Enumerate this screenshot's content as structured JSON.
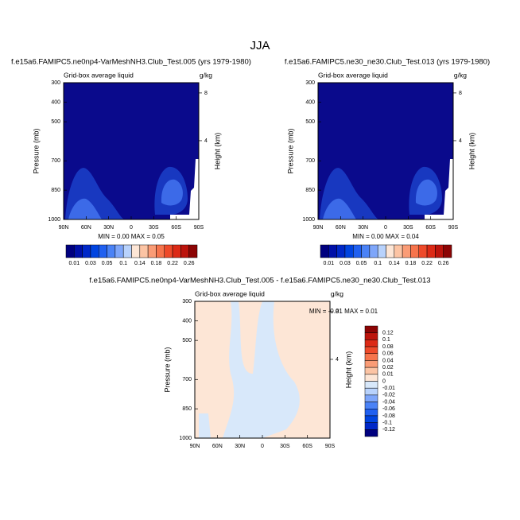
{
  "title": "JJA",
  "chart_data": [
    {
      "type": "contour",
      "title": "f.e15a6.FAMIPC5.ne0np4-VarMeshNH3.Club_Test.005 (yrs 1979-1980)",
      "subtitle": "Grid-box average liquid",
      "units": "g/kg",
      "ylabel": "Pressure (mb)",
      "y2label": "Height (km)",
      "stats": "MIN =  0.00  MAX =  0.05",
      "xlim": [
        90,
        -90
      ],
      "xticks": [
        {
          "value": 90,
          "label": "90N"
        },
        {
          "value": 60,
          "label": "60N"
        },
        {
          "value": 30,
          "label": "30N"
        },
        0,
        {
          "value": -30,
          "label": "30S"
        },
        {
          "value": -60,
          "label": "60S"
        },
        {
          "value": -90,
          "label": "90S"
        }
      ],
      "ylim": [
        300,
        1000
      ],
      "yticks": [
        300,
        400,
        500,
        700,
        850,
        1000
      ],
      "y2lim": [
        8.86,
        -2.6
      ],
      "y2ticks": [
        8,
        4
      ],
      "colorbar": {
        "orientation": "horizontal",
        "labels": [
          0.01,
          0.03,
          0.05,
          0.1,
          0.14,
          0.18,
          0.22,
          0.26
        ],
        "colors": [
          "#00007f",
          "#0010a8",
          "#0028c8",
          "#0044e0",
          "#2060f0",
          "#4a82f6",
          "#7ea6fa",
          "#b8d2fc",
          "#fde6d6",
          "#fcc4a4",
          "#fa9c76",
          "#f6744c",
          "#ee4a2a",
          "#dc2a16",
          "#bc140c",
          "#8c0404"
        ]
      }
    },
    {
      "type": "contour",
      "title": "f.e15a6.FAMIPC5.ne30_ne30.Club_Test.013 (yrs 1979-1980)",
      "subtitle": "Grid-box average liquid",
      "units": "g/kg",
      "ylabel": "Pressure (mb)",
      "y2label": "Height (km)",
      "stats": "MIN =  0.00  MAX =  0.04",
      "xlim": [
        90,
        -90
      ],
      "xticks": [
        {
          "value": 90,
          "label": "90N"
        },
        {
          "value": 60,
          "label": "60N"
        },
        {
          "value": 30,
          "label": "30N"
        },
        0,
        {
          "value": -30,
          "label": "30S"
        },
        {
          "value": -60,
          "label": "60S"
        },
        {
          "value": -90,
          "label": "90S"
        }
      ],
      "ylim": [
        300,
        1000
      ],
      "yticks": [
        300,
        400,
        500,
        700,
        850,
        1000
      ],
      "y2lim": [
        8.86,
        -2.6
      ],
      "y2ticks": [
        8,
        4
      ],
      "colorbar": {
        "orientation": "horizontal",
        "labels": [
          0.01,
          0.03,
          0.05,
          0.1,
          0.14,
          0.18,
          0.22,
          0.26
        ],
        "colors": [
          "#00007f",
          "#0010a8",
          "#0028c8",
          "#0044e0",
          "#2060f0",
          "#4a82f6",
          "#7ea6fa",
          "#b8d2fc",
          "#fde6d6",
          "#fcc4a4",
          "#fa9c76",
          "#f6744c",
          "#ee4a2a",
          "#dc2a16",
          "#bc140c",
          "#8c0404"
        ]
      }
    },
    {
      "type": "contour",
      "title": "f.e15a6.FAMIPC5.ne0np4-VarMeshNH3.Club_Test.005 - f.e15a6.FAMIPC5.ne30_ne30.Club_Test.013",
      "subtitle": "Grid-box average liquid",
      "units": "g/kg",
      "ylabel": "Pressure (mb)",
      "y2label": "Height (km)",
      "stats": "MIN = -0.01  MAX =  0.01",
      "xlim": [
        90,
        -90
      ],
      "xticks": [
        {
          "value": 90,
          "label": "90N"
        },
        {
          "value": 60,
          "label": "60N"
        },
        {
          "value": 30,
          "label": "30N"
        },
        0,
        {
          "value": -30,
          "label": "30S"
        },
        {
          "value": -60,
          "label": "60S"
        },
        {
          "value": -90,
          "label": "90S"
        }
      ],
      "ylim": [
        300,
        1000
      ],
      "yticks": [
        300,
        400,
        500,
        700,
        850,
        1000
      ],
      "y2lim": [
        8.86,
        -2.6
      ],
      "y2ticks": [
        8,
        4
      ],
      "colorbar": {
        "orientation": "vertical",
        "labels": [
          0.12,
          0.1,
          0.08,
          0.06,
          0.04,
          0.02,
          0.01,
          0,
          -0.01,
          -0.02,
          -0.04,
          -0.06,
          -0.08,
          -0.1,
          -0.12
        ],
        "colors": [
          "#8c0404",
          "#bc140c",
          "#dc2a16",
          "#ee4a2a",
          "#f6744c",
          "#fa9c76",
          "#fcc4a4",
          "#fde6d6",
          "#d8e8fa",
          "#b8d2fc",
          "#7ea6fa",
          "#4a82f6",
          "#2060f0",
          "#0044e0",
          "#0028c8",
          "#00007f"
        ]
      }
    }
  ]
}
